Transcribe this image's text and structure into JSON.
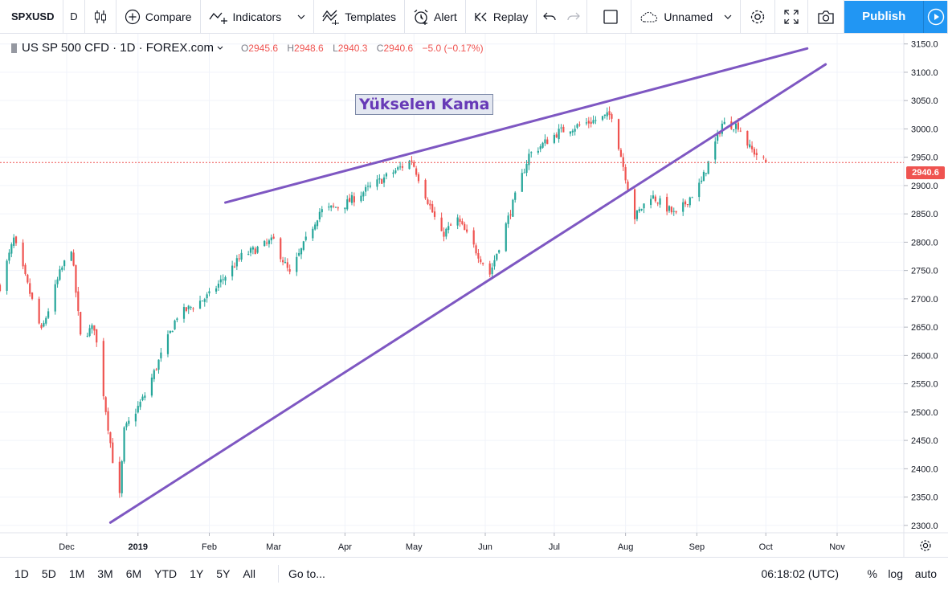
{
  "toolbar": {
    "symbol": "SPXUSD",
    "interval": "D",
    "compare": "Compare",
    "indicators": "Indicators",
    "templates": "Templates",
    "alert": "Alert",
    "replay": "Replay",
    "layout_name": "Unnamed",
    "publish": "Publish"
  },
  "legend": {
    "title": "US SP 500 CFD · 1D · FOREX.com",
    "open_key": "O",
    "open": "2945.6",
    "high_key": "H",
    "high": "2948.6",
    "low_key": "L",
    "low": "2940.3",
    "close_key": "C",
    "close": "2940.6",
    "change": "−5.0 (−0.17%)"
  },
  "annotation": "Yükselen Kama",
  "price_tag": "2940.6",
  "colors": {
    "up": "#26a69a",
    "down": "#ef5350",
    "trendline": "#7e57c2",
    "accent": "#2196f3"
  },
  "bottombar": {
    "ranges": [
      "1D",
      "5D",
      "1M",
      "3M",
      "6M",
      "YTD",
      "1Y",
      "5Y",
      "All"
    ],
    "goto": "Go to...",
    "clock": "06:18:02 (UTC)",
    "percent": "%",
    "log": "log",
    "auto": "auto"
  },
  "chart_data": {
    "type": "candlestick",
    "symbol": "US SP 500 CFD",
    "interval": "1D",
    "ylim": [
      2287,
      3168
    ],
    "y_ticks": [
      2300,
      2350,
      2400,
      2450,
      2500,
      2550,
      2600,
      2650,
      2700,
      2750,
      2800,
      2850,
      2900,
      2950,
      3000,
      3050,
      3100,
      3150
    ],
    "y_tick_labels": [
      "2300.0",
      "2350.0",
      "2400.0",
      "2450.0",
      "2500.0",
      "2550.0",
      "2600.0",
      "2650.0",
      "2700.0",
      "2750.0",
      "2800.0",
      "2850.0",
      "2900.0",
      "2950.0",
      "3000.0",
      "3050.0",
      "3100.0",
      "3150.0"
    ],
    "x_labels": [
      {
        "label": "Dec",
        "date": "2018-12-01"
      },
      {
        "label": "2019",
        "date": "2019-01-01"
      },
      {
        "label": "Feb",
        "date": "2019-02-01"
      },
      {
        "label": "Mar",
        "date": "2019-03-01"
      },
      {
        "label": "Apr",
        "date": "2019-04-01"
      },
      {
        "label": "May",
        "date": "2019-05-01"
      },
      {
        "label": "Jun",
        "date": "2019-06-01"
      },
      {
        "label": "Jul",
        "date": "2019-07-01"
      },
      {
        "label": "Aug",
        "date": "2019-08-01"
      },
      {
        "label": "Sep",
        "date": "2019-09-01"
      },
      {
        "label": "Oct",
        "date": "2019-10-01"
      },
      {
        "label": "Nov",
        "date": "2019-11-01"
      }
    ],
    "x_range": [
      "2018-11-02",
      "2019-11-30"
    ],
    "last_price": 2940.6,
    "close_path": [
      [
        "2018-11-02",
        2722
      ],
      [
        "2018-11-08",
        2805
      ],
      [
        "2018-11-20",
        2642
      ],
      [
        "2018-11-28",
        2745
      ],
      [
        "2018-12-03",
        2790
      ],
      [
        "2018-12-07",
        2633
      ],
      [
        "2018-12-13",
        2650
      ],
      [
        "2018-12-21",
        2416
      ],
      [
        "2018-12-24",
        2351
      ],
      [
        "2018-12-26",
        2467
      ],
      [
        "2019-01-04",
        2530
      ],
      [
        "2019-01-18",
        2670
      ],
      [
        "2019-02-01",
        2706
      ],
      [
        "2019-02-15",
        2775
      ],
      [
        "2019-03-01",
        2803
      ],
      [
        "2019-03-08",
        2743
      ],
      [
        "2019-03-21",
        2854
      ],
      [
        "2019-04-01",
        2867
      ],
      [
        "2019-04-15",
        2905
      ],
      [
        "2019-04-30",
        2945
      ],
      [
        "2019-05-13",
        2812
      ],
      [
        "2019-05-20",
        2840
      ],
      [
        "2019-06-03",
        2744
      ],
      [
        "2019-06-20",
        2954
      ],
      [
        "2019-07-03",
        2995
      ],
      [
        "2019-07-26",
        3025
      ],
      [
        "2019-08-05",
        2844
      ],
      [
        "2019-08-12",
        2883
      ],
      [
        "2019-08-23",
        2847
      ],
      [
        "2019-09-03",
        2906
      ],
      [
        "2019-09-12",
        3009
      ],
      [
        "2019-09-19",
        3006
      ],
      [
        "2019-09-24",
        2966
      ],
      [
        "2019-10-01",
        2940.6
      ]
    ],
    "trendlines": [
      {
        "start": [
          "2019-02-08",
          2870
        ],
        "end": [
          "2019-10-19",
          3142
        ]
      },
      {
        "start": [
          "2018-12-20",
          2305
        ],
        "end": [
          "2019-10-27",
          3114
        ]
      }
    ],
    "annotation": "Yükselen Kama"
  }
}
